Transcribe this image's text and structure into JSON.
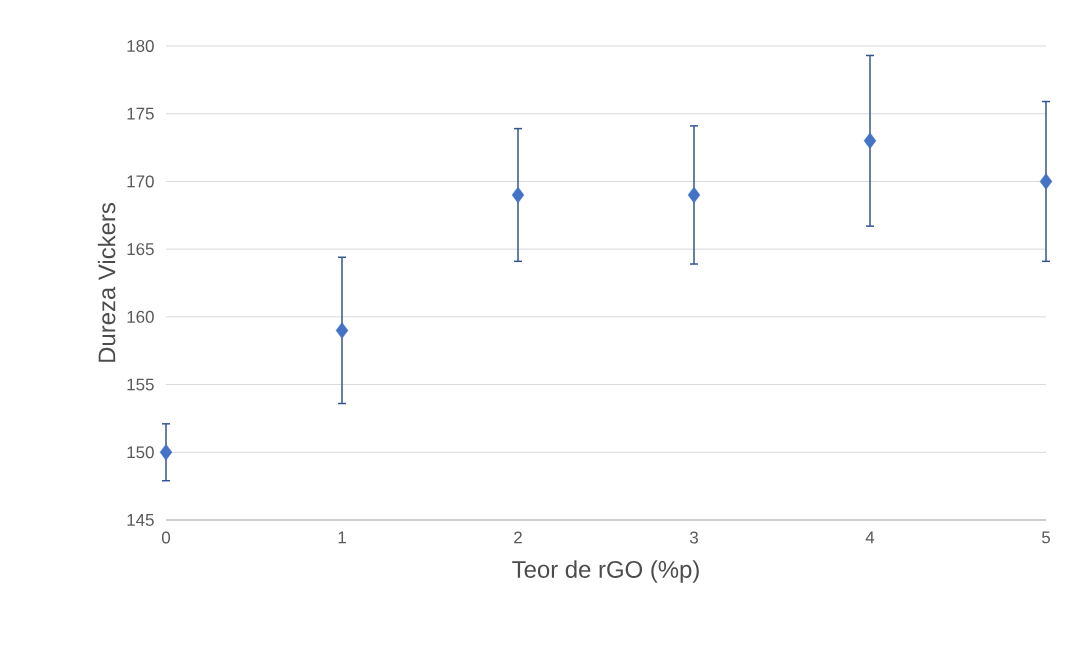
{
  "chart_data": {
    "type": "scatter",
    "xlabel": "Teor de rGO (%p)",
    "ylabel": "Dureza Vickers",
    "x": [
      0,
      1,
      2,
      3,
      4,
      5
    ],
    "series": [
      {
        "color": "#4472c4",
        "values": [
          150,
          159,
          169,
          169,
          173,
          170
        ],
        "errors": [
          2.1,
          5.4,
          4.9,
          5.1,
          6.3,
          5.9
        ]
      }
    ],
    "xlim": [
      0,
      5
    ],
    "ylim": [
      145,
      180
    ],
    "xticks": [
      0,
      1,
      2,
      3,
      4,
      5
    ],
    "yticks": [
      145,
      150,
      155,
      160,
      165,
      170,
      175,
      180
    ],
    "grid": "y",
    "marker": "diamond",
    "line_style": "none"
  }
}
